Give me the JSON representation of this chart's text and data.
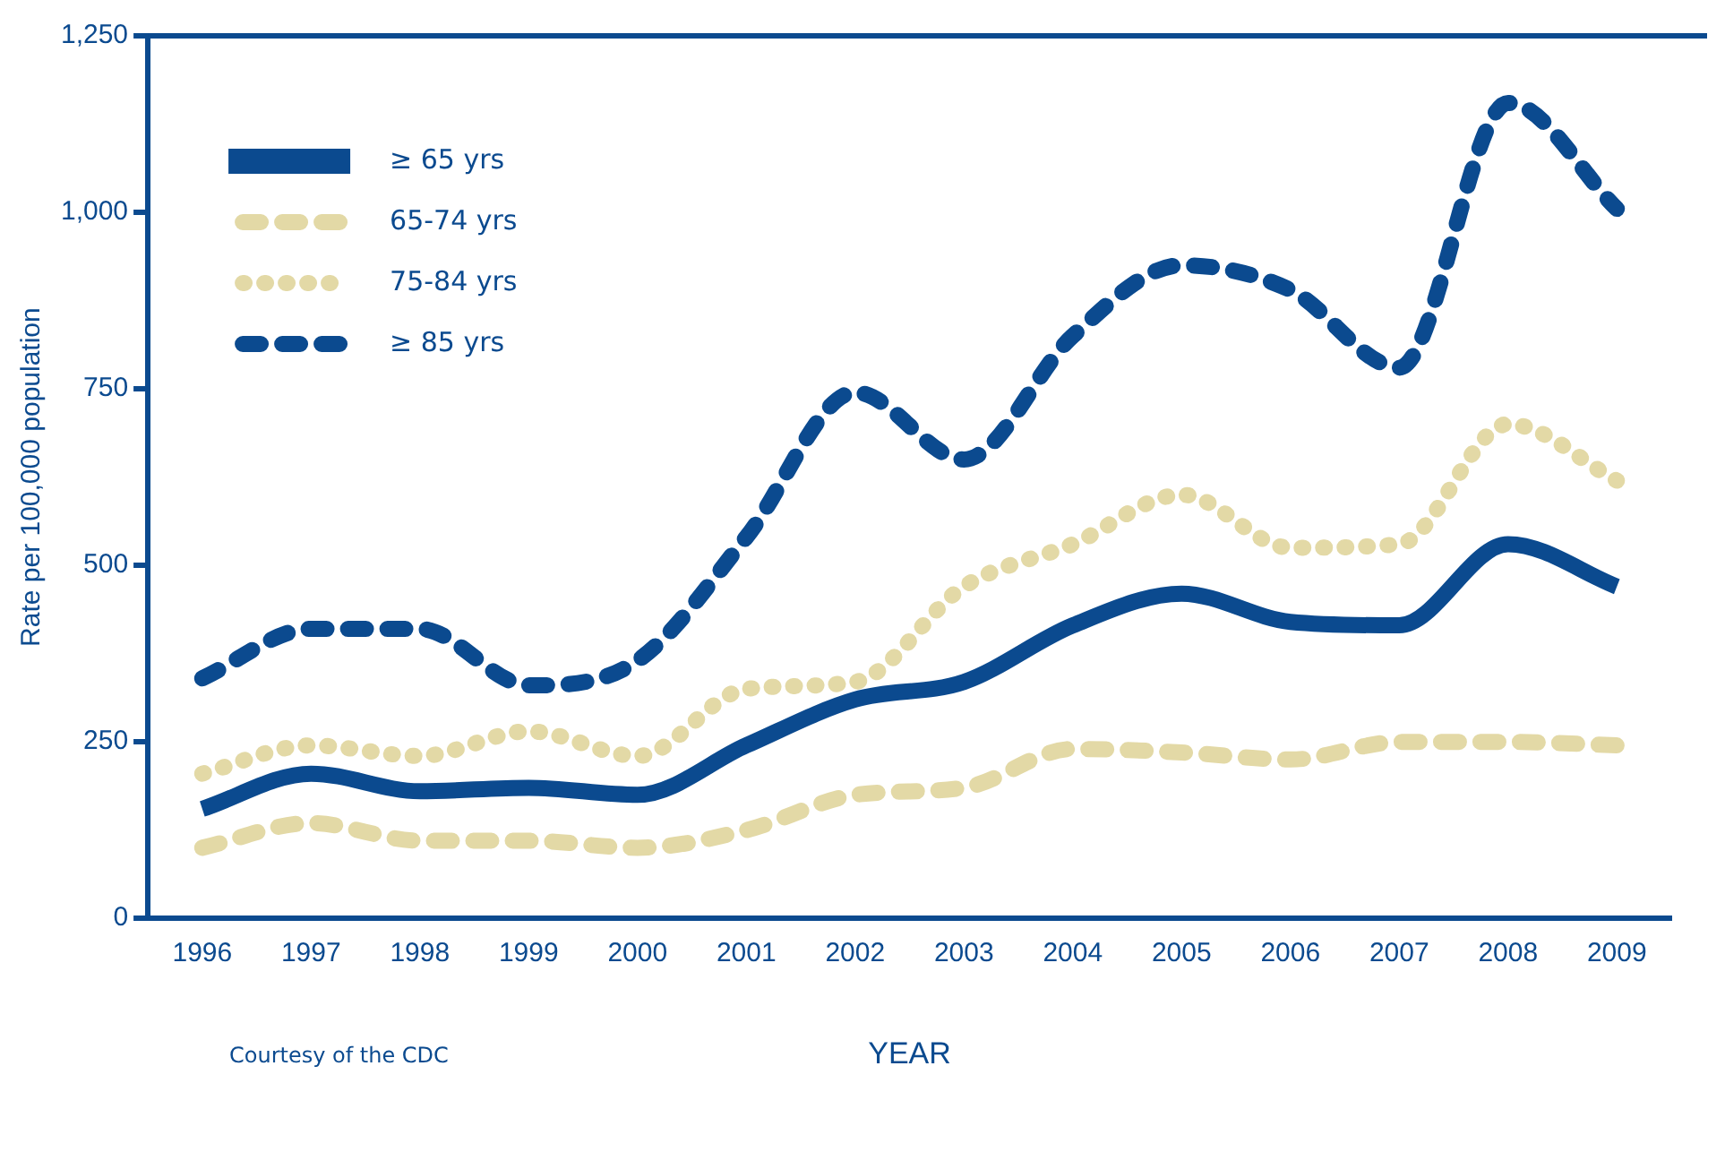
{
  "chart_data": {
    "type": "line",
    "xlabel": "YEAR",
    "ylabel": "Rate per 100,000 population",
    "categories": [
      "1996",
      "1997",
      "1998",
      "1999",
      "2000",
      "2001",
      "2002",
      "2003",
      "2004",
      "2005",
      "2006",
      "2007",
      "2008",
      "2009"
    ],
    "series": [
      {
        "name": "≥ 65 yrs",
        "color": "#0b4a8f",
        "line_style": "solid",
        "values": [
          155,
          205,
          180,
          185,
          175,
          245,
          310,
          335,
          415,
          460,
          420,
          415,
          530,
          470
        ]
      },
      {
        "name": "65-74 yrs",
        "color": "#e3d9a6",
        "line_style": "dashed",
        "values": [
          100,
          135,
          110,
          110,
          100,
          125,
          175,
          185,
          240,
          235,
          225,
          250,
          250,
          245
        ]
      },
      {
        "name": "75-84 yrs",
        "color": "#e3d9a6",
        "line_style": "dotted",
        "values": [
          205,
          245,
          230,
          265,
          230,
          325,
          335,
          470,
          530,
          600,
          525,
          530,
          700,
          620
        ]
      },
      {
        "name": "≥ 85 yrs",
        "color": "#0b4a8f",
        "line_style": "dashed",
        "values": [
          340,
          410,
          410,
          330,
          365,
          540,
          745,
          650,
          825,
          925,
          890,
          780,
          1155,
          1005
        ]
      }
    ],
    "ylim": [
      0,
      1250
    ],
    "yticks": [
      0,
      250,
      500,
      750,
      {
        "value": 1000,
        "label": "1,000"
      },
      {
        "value": 1250,
        "label": "1,250"
      }
    ],
    "grid": false,
    "legend": "top left",
    "marker": "none",
    "annotations": [
      "Courtesy of the CDC"
    ]
  }
}
